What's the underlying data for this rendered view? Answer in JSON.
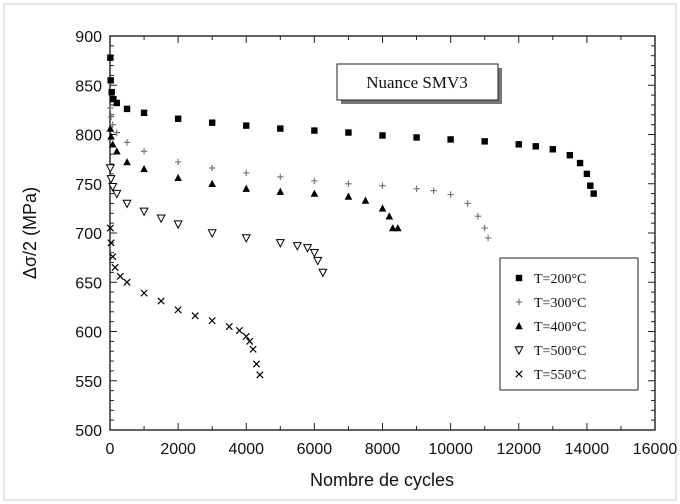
{
  "chart_data": {
    "type": "scatter",
    "title": "",
    "annotation": "Nuance SMV3",
    "xlabel": "Nombre de cycles",
    "ylabel": "Δσ/2 (MPa)",
    "xlim": [
      0,
      16000
    ],
    "ylim": [
      500,
      900
    ],
    "xticks": [
      0,
      2000,
      4000,
      6000,
      8000,
      10000,
      12000,
      14000,
      16000
    ],
    "yticks": [
      500,
      550,
      600,
      650,
      700,
      750,
      800,
      850,
      900
    ],
    "grid": false,
    "legend_position": "right",
    "series": [
      {
        "name": "T=200°C",
        "marker": "square",
        "color": "#000000",
        "x": [
          10,
          20,
          50,
          100,
          200,
          500,
          1000,
          2000,
          3000,
          4000,
          5000,
          6000,
          7000,
          8000,
          9000,
          10000,
          11000,
          12000,
          12500,
          13000,
          13500,
          13800,
          14000,
          14100,
          14200
        ],
        "y": [
          878,
          855,
          843,
          836,
          832,
          826,
          822,
          816,
          812,
          809,
          806,
          804,
          802,
          799,
          797,
          795,
          793,
          790,
          788,
          785,
          779,
          771,
          760,
          748,
          740
        ]
      },
      {
        "name": "T=300°C",
        "marker": "plus",
        "color": "#777777",
        "x": [
          10,
          30,
          80,
          200,
          500,
          1000,
          2000,
          3000,
          4000,
          5000,
          6000,
          7000,
          8000,
          9000,
          9500,
          10000,
          10500,
          10800,
          11000,
          11100
        ],
        "y": [
          827,
          818,
          810,
          802,
          792,
          783,
          772,
          766,
          761,
          757,
          753,
          750,
          748,
          745,
          743,
          739,
          730,
          717,
          705,
          695
        ]
      },
      {
        "name": "T=400°C",
        "marker": "triangle",
        "color": "#000000",
        "x": [
          10,
          30,
          80,
          200,
          500,
          1000,
          2000,
          3000,
          4000,
          5000,
          6000,
          7000,
          7500,
          8000,
          8200,
          8300,
          8450
        ],
        "y": [
          806,
          798,
          790,
          783,
          772,
          765,
          756,
          750,
          745,
          742,
          740,
          737,
          733,
          725,
          717,
          705,
          705
        ]
      },
      {
        "name": "T=500°C",
        "marker": "triangle-down",
        "color": "#000000",
        "x": [
          10,
          30,
          80,
          200,
          500,
          1000,
          1500,
          2000,
          3000,
          4000,
          5000,
          5500,
          5800,
          6000,
          6100,
          6250
        ],
        "y": [
          766,
          755,
          747,
          740,
          730,
          722,
          715,
          709,
          700,
          695,
          690,
          687,
          685,
          680,
          672,
          660
        ]
      },
      {
        "name": "T=550°C",
        "marker": "x",
        "color": "#000000",
        "x": [
          10,
          30,
          80,
          150,
          300,
          500,
          1000,
          1500,
          2000,
          2500,
          3000,
          3500,
          3800,
          4000,
          4100,
          4200,
          4300,
          4400
        ],
        "y": [
          705,
          690,
          676,
          665,
          656,
          650,
          639,
          631,
          622,
          616,
          611,
          605,
          601,
          595,
          590,
          582,
          567,
          556
        ]
      }
    ]
  }
}
